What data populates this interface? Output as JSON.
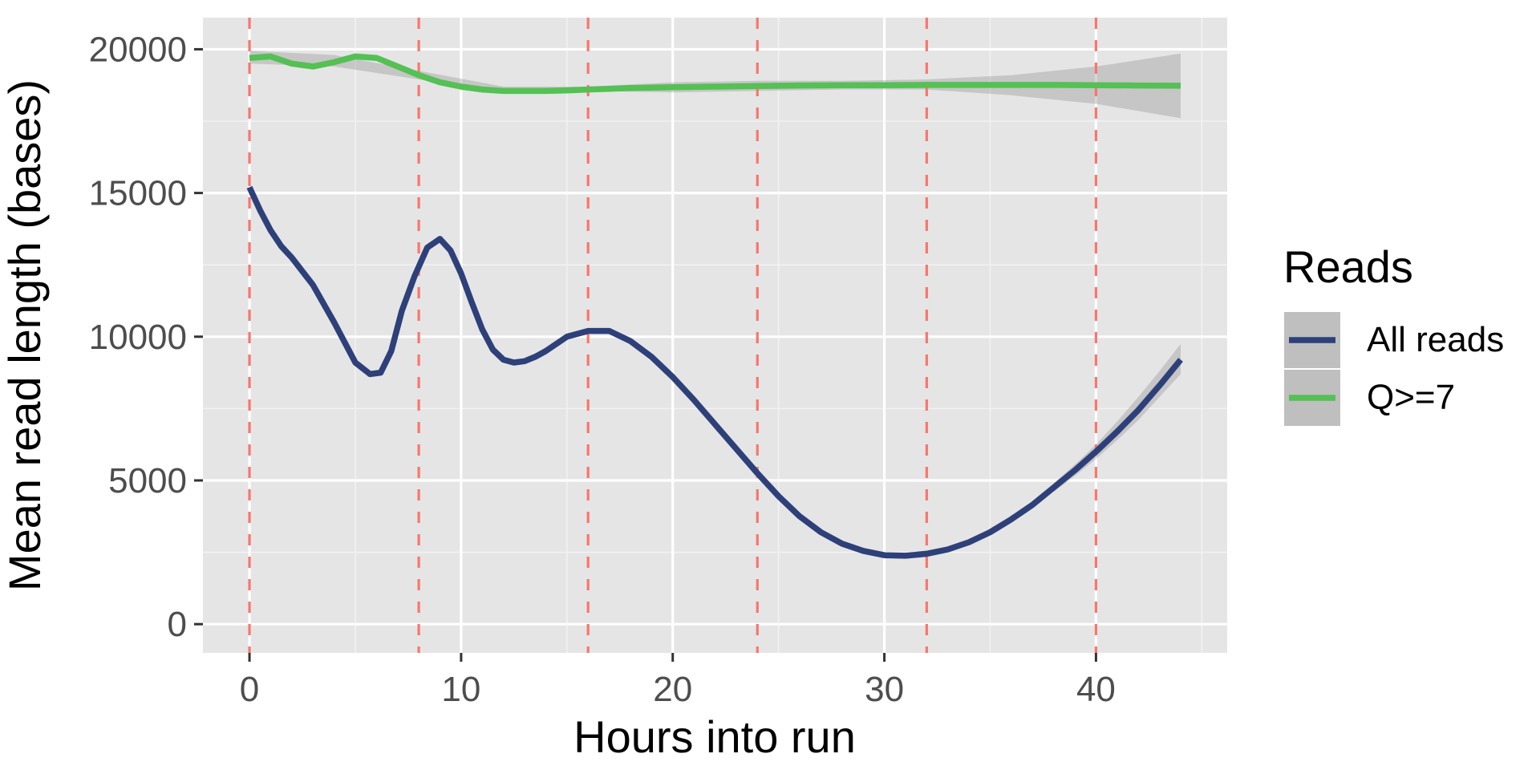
{
  "chart_data": {
    "type": "line",
    "title": "",
    "xlabel": "Hours into run",
    "ylabel": "Mean read length (bases)",
    "xlim": [
      -2.2,
      46.2
    ],
    "ylim": [
      -1000,
      21100
    ],
    "x_ticks": [
      0,
      10,
      20,
      30,
      40
    ],
    "x_minor_ticks": [
      5,
      15,
      25,
      35,
      45
    ],
    "y_ticks": [
      0,
      5000,
      10000,
      15000,
      20000
    ],
    "y_minor_ticks": [
      2500,
      7500,
      12500,
      17500
    ],
    "grid": true,
    "vlines": {
      "x": [
        0,
        8,
        16,
        24,
        32,
        40
      ],
      "style": "dashed",
      "color": "#f8766d"
    },
    "legend": {
      "title": "Reads",
      "position": "right"
    },
    "series": [
      {
        "name": "All reads",
        "color": "#2e4079",
        "x": [
          0,
          0.5,
          1,
          1.5,
          2,
          3,
          4,
          5,
          5.7,
          6.2,
          6.7,
          7.2,
          7.8,
          8.4,
          9,
          9.5,
          10,
          10.5,
          11,
          11.5,
          12,
          12.5,
          13,
          13.5,
          14,
          15,
          16,
          17,
          18,
          19,
          20,
          21,
          22,
          23,
          24,
          25,
          26,
          27,
          28,
          29,
          30,
          31,
          32,
          33,
          34,
          35,
          36,
          37,
          38,
          39,
          40,
          41,
          42,
          43,
          44
        ],
        "y": [
          15200,
          14400,
          13700,
          13150,
          12750,
          11800,
          10500,
          9100,
          8700,
          8750,
          9500,
          10900,
          12100,
          13100,
          13400,
          13000,
          12200,
          11200,
          10250,
          9550,
          9200,
          9100,
          9150,
          9300,
          9500,
          10000,
          10200,
          10200,
          9850,
          9300,
          8600,
          7800,
          6950,
          6100,
          5250,
          4450,
          3750,
          3200,
          2800,
          2550,
          2400,
          2380,
          2450,
          2600,
          2850,
          3200,
          3650,
          4150,
          4750,
          5350,
          6000,
          6700,
          7450,
          8300,
          9200
        ],
        "band": {
          "lower_x": [
            38,
            39,
            40,
            41,
            42,
            43,
            44
          ],
          "lower": [
            4600,
            5150,
            5750,
            6400,
            7100,
            7900,
            8700
          ],
          "upper": [
            4900,
            5550,
            6250,
            7050,
            7900,
            8800,
            9750
          ]
        }
      },
      {
        "name": "Q>=7",
        "color": "#55c054",
        "x": [
          0,
          1,
          2,
          3,
          4,
          5,
          6,
          7,
          8,
          9,
          10,
          11,
          12,
          13,
          14,
          15,
          16,
          18,
          20,
          22,
          24,
          26,
          28,
          30,
          32,
          34,
          36,
          38,
          40,
          42,
          44
        ],
        "y": [
          19700,
          19750,
          19500,
          19400,
          19550,
          19750,
          19700,
          19400,
          19100,
          18850,
          18700,
          18600,
          18550,
          18550,
          18550,
          18570,
          18600,
          18650,
          18680,
          18700,
          18720,
          18740,
          18750,
          18750,
          18760,
          18760,
          18760,
          18760,
          18750,
          18740,
          18730
        ],
        "band": {
          "lower_x": [
            0,
            4,
            8,
            12,
            16,
            20,
            24,
            28,
            32,
            36,
            40,
            44
          ],
          "lower": [
            19500,
            19400,
            18950,
            18450,
            18550,
            18500,
            18550,
            18600,
            18600,
            18400,
            18100,
            17600
          ],
          "upper": [
            19950,
            19800,
            19250,
            18700,
            18700,
            18850,
            18900,
            18900,
            18950,
            19100,
            19400,
            19850
          ]
        }
      }
    ]
  }
}
